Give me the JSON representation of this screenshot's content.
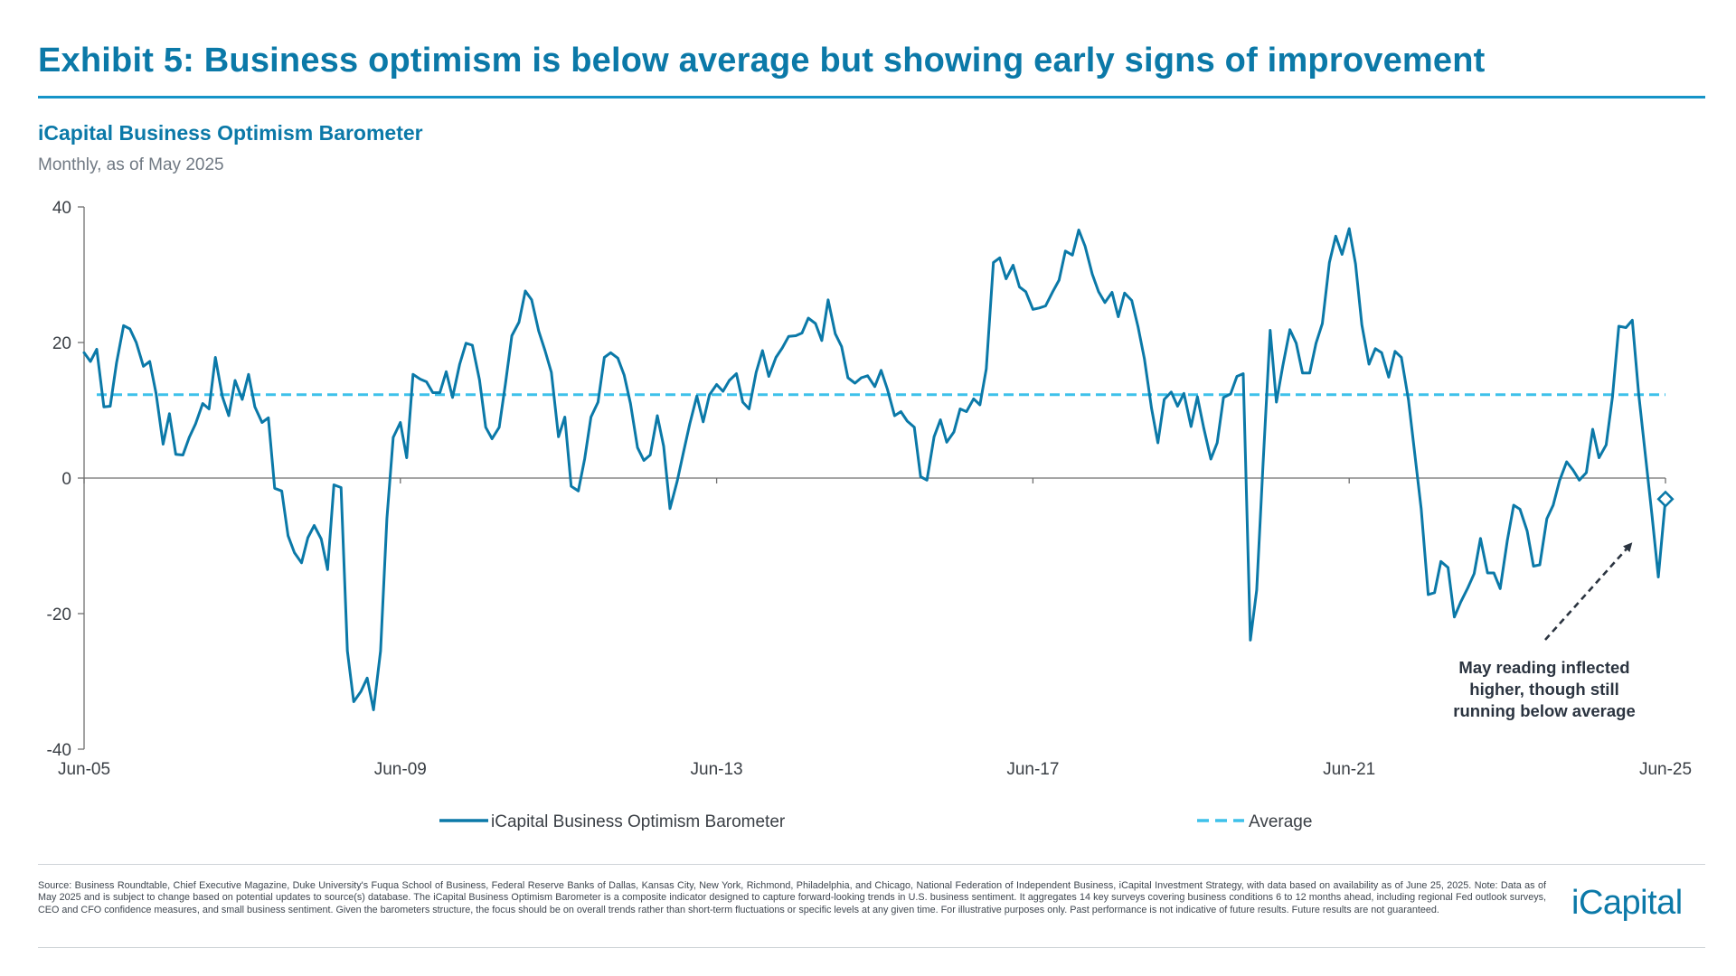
{
  "exhibit_title": "Exhibit 5: Business optimism is below average but showing early signs of improvement",
  "chart_subtitle": "iCapital Business Optimism Barometer",
  "chart_frequency": "Monthly, as of May 2025",
  "annotation": {
    "lines": [
      "May reading inflected",
      "higher, though still",
      "running below average"
    ]
  },
  "footer": {
    "source_note": "Source: Business Roundtable, Chief Executive Magazine, Duke University's Fuqua School of Business, Federal Reserve Banks of Dallas, Kansas City, New York, Richmond, Philadelphia, and Chicago, National Federation of Independent Business, iCapital Investment Strategy, with data based on availability as of June 25, 2025. Note: Data as of May 2025 and is subject to change based on potential updates to source(s) database. The iCapital Business Optimism Barometer is a composite indicator designed to capture forward-looking trends in U.S. business sentiment. It aggregates 14 key surveys covering business conditions 6 to 12 months ahead, including regional Fed outlook surveys, CEO and CFO confidence measures, and small business sentiment. Given the barometers structure, the focus should be on overall trends rather than short-term fluctuations or specific levels at any given time. For illustrative purposes only. Past performance is not indicative of future results. Future results are not guaranteed.",
    "logo_text": "iCapital"
  },
  "colors": {
    "title": "#0b79a8",
    "series_line": "#0b79a8",
    "average_line": "#3ec1ea",
    "axis": "#6f6f6f",
    "annotation_text": "#2b3440",
    "arrow": "#2b3440"
  },
  "chart_data": {
    "type": "line",
    "title": "iCapital Business Optimism Barometer",
    "subtitle": "Monthly, as of May 2025",
    "xlabel": "",
    "ylabel": "",
    "x_start": "Jun-05",
    "x_end": "Jun-25",
    "ylim": [
      -40,
      40
    ],
    "y_ticks": [
      40,
      20,
      0,
      -20,
      -40
    ],
    "x_ticks": [
      {
        "label": "Jun-05",
        "year": 2005.42
      },
      {
        "label": "Jun-09",
        "year": 2009.42
      },
      {
        "label": "Jun-13",
        "year": 2013.42
      },
      {
        "label": "Jun-17",
        "year": 2017.42
      },
      {
        "label": "Jun-21",
        "year": 2021.42
      },
      {
        "label": "Jun-25",
        "year": 2025.42
      }
    ],
    "grid": false,
    "legend_position": "bottom",
    "series": [
      {
        "name": "iCapital Business Optimism Barometer",
        "style": "solid",
        "points": [
          [
            2005.42,
            18.5
          ],
          [
            2005.5,
            17.2
          ],
          [
            2005.58,
            19.0
          ],
          [
            2005.67,
            10.5
          ],
          [
            2005.75,
            10.6
          ],
          [
            2005.83,
            17.0
          ],
          [
            2005.92,
            22.5
          ],
          [
            2006.0,
            22.0
          ],
          [
            2006.08,
            20.0
          ],
          [
            2006.17,
            16.5
          ],
          [
            2006.25,
            17.2
          ],
          [
            2006.33,
            12.5
          ],
          [
            2006.42,
            5.0
          ],
          [
            2006.5,
            9.5
          ],
          [
            2006.58,
            3.5
          ],
          [
            2006.67,
            3.4
          ],
          [
            2006.75,
            6.0
          ],
          [
            2006.83,
            8.0
          ],
          [
            2006.92,
            11.0
          ],
          [
            2007.0,
            10.2
          ],
          [
            2007.08,
            17.8
          ],
          [
            2007.17,
            12.0
          ],
          [
            2007.25,
            9.2
          ],
          [
            2007.33,
            14.4
          ],
          [
            2007.42,
            11.6
          ],
          [
            2007.5,
            15.3
          ],
          [
            2007.58,
            10.5
          ],
          [
            2007.67,
            8.2
          ],
          [
            2007.75,
            8.9
          ],
          [
            2007.83,
            -1.5
          ],
          [
            2007.92,
            -1.9
          ],
          [
            2008.0,
            -8.5
          ],
          [
            2008.08,
            -11.0
          ],
          [
            2008.17,
            -12.5
          ],
          [
            2008.25,
            -8.8
          ],
          [
            2008.33,
            -7.0
          ],
          [
            2008.42,
            -9.0
          ],
          [
            2008.5,
            -13.5
          ],
          [
            2008.58,
            -1.0
          ],
          [
            2008.67,
            -1.4
          ],
          [
            2008.75,
            -25.5
          ],
          [
            2008.83,
            -33.0
          ],
          [
            2008.92,
            -31.5
          ],
          [
            2009.0,
            -29.5
          ],
          [
            2009.08,
            -34.2
          ],
          [
            2009.17,
            -25.5
          ],
          [
            2009.25,
            -6.0
          ],
          [
            2009.33,
            6.0
          ],
          [
            2009.42,
            8.2
          ],
          [
            2009.5,
            3.0
          ],
          [
            2009.58,
            15.3
          ],
          [
            2009.67,
            14.6
          ],
          [
            2009.75,
            14.2
          ],
          [
            2009.83,
            12.6
          ],
          [
            2009.92,
            12.6
          ],
          [
            2010.0,
            15.7
          ],
          [
            2010.08,
            11.9
          ],
          [
            2010.17,
            16.8
          ],
          [
            2010.25,
            19.9
          ],
          [
            2010.33,
            19.6
          ],
          [
            2010.42,
            14.5
          ],
          [
            2010.5,
            7.5
          ],
          [
            2010.58,
            5.8
          ],
          [
            2010.67,
            7.5
          ],
          [
            2010.75,
            14.0
          ],
          [
            2010.83,
            21.0
          ],
          [
            2010.92,
            23.0
          ],
          [
            2011.0,
            27.6
          ],
          [
            2011.08,
            26.3
          ],
          [
            2011.17,
            21.7
          ],
          [
            2011.25,
            18.8
          ],
          [
            2011.33,
            15.6
          ],
          [
            2011.42,
            6.1
          ],
          [
            2011.5,
            9.0
          ],
          [
            2011.58,
            -1.2
          ],
          [
            2011.67,
            -1.9
          ],
          [
            2011.75,
            2.8
          ],
          [
            2011.83,
            9.0
          ],
          [
            2011.92,
            11.2
          ],
          [
            2012.0,
            17.8
          ],
          [
            2012.08,
            18.5
          ],
          [
            2012.17,
            17.7
          ],
          [
            2012.25,
            15.2
          ],
          [
            2012.33,
            11.0
          ],
          [
            2012.42,
            4.5
          ],
          [
            2012.5,
            2.6
          ],
          [
            2012.58,
            3.4
          ],
          [
            2012.67,
            9.2
          ],
          [
            2012.75,
            4.7
          ],
          [
            2012.83,
            -4.5
          ],
          [
            2012.92,
            -0.5
          ],
          [
            2013.0,
            3.8
          ],
          [
            2013.08,
            8.0
          ],
          [
            2013.17,
            12.1
          ],
          [
            2013.25,
            8.3
          ],
          [
            2013.33,
            12.3
          ],
          [
            2013.42,
            13.8
          ],
          [
            2013.5,
            12.8
          ],
          [
            2013.58,
            14.4
          ],
          [
            2013.67,
            15.4
          ],
          [
            2013.75,
            11.2
          ],
          [
            2013.83,
            10.2
          ],
          [
            2013.92,
            15.6
          ],
          [
            2014.0,
            18.8
          ],
          [
            2014.08,
            15.0
          ],
          [
            2014.17,
            17.8
          ],
          [
            2014.25,
            19.2
          ],
          [
            2014.33,
            20.9
          ],
          [
            2014.42,
            21.0
          ],
          [
            2014.5,
            21.4
          ],
          [
            2014.58,
            23.6
          ],
          [
            2014.67,
            22.8
          ],
          [
            2014.75,
            20.3
          ],
          [
            2014.83,
            26.3
          ],
          [
            2014.92,
            21.3
          ],
          [
            2015.0,
            19.4
          ],
          [
            2015.08,
            14.8
          ],
          [
            2015.17,
            14.0
          ],
          [
            2015.25,
            14.8
          ],
          [
            2015.33,
            15.1
          ],
          [
            2015.42,
            13.5
          ],
          [
            2015.5,
            15.9
          ],
          [
            2015.58,
            13.1
          ],
          [
            2015.67,
            9.2
          ],
          [
            2015.75,
            9.8
          ],
          [
            2015.83,
            8.4
          ],
          [
            2015.92,
            7.5
          ],
          [
            2016.0,
            0.2
          ],
          [
            2016.08,
            -0.3
          ],
          [
            2016.17,
            6.1
          ],
          [
            2016.25,
            8.6
          ],
          [
            2016.33,
            5.3
          ],
          [
            2016.42,
            6.8
          ],
          [
            2016.5,
            10.2
          ],
          [
            2016.58,
            9.8
          ],
          [
            2016.67,
            11.7
          ],
          [
            2016.75,
            10.8
          ],
          [
            2016.83,
            16.1
          ],
          [
            2016.92,
            31.8
          ],
          [
            2017.0,
            32.5
          ],
          [
            2017.08,
            29.4
          ],
          [
            2017.17,
            31.4
          ],
          [
            2017.25,
            28.2
          ],
          [
            2017.33,
            27.5
          ],
          [
            2017.42,
            24.9
          ],
          [
            2017.5,
            25.1
          ],
          [
            2017.58,
            25.4
          ],
          [
            2017.67,
            27.5
          ],
          [
            2017.75,
            29.2
          ],
          [
            2017.83,
            33.5
          ],
          [
            2017.92,
            32.9
          ],
          [
            2018.0,
            36.6
          ],
          [
            2018.08,
            34.2
          ],
          [
            2018.17,
            30.1
          ],
          [
            2018.25,
            27.5
          ],
          [
            2018.33,
            25.9
          ],
          [
            2018.42,
            27.4
          ],
          [
            2018.5,
            23.8
          ],
          [
            2018.58,
            27.3
          ],
          [
            2018.67,
            26.2
          ],
          [
            2018.75,
            22.3
          ],
          [
            2018.83,
            17.6
          ],
          [
            2018.92,
            10.3
          ],
          [
            2019.0,
            5.2
          ],
          [
            2019.08,
            11.6
          ],
          [
            2019.17,
            12.7
          ],
          [
            2019.25,
            10.6
          ],
          [
            2019.33,
            12.5
          ],
          [
            2019.42,
            7.6
          ],
          [
            2019.5,
            12.0
          ],
          [
            2019.58,
            7.4
          ],
          [
            2019.67,
            2.8
          ],
          [
            2019.75,
            5.2
          ],
          [
            2019.83,
            11.9
          ],
          [
            2019.92,
            12.4
          ],
          [
            2020.0,
            15.0
          ],
          [
            2020.08,
            15.4
          ],
          [
            2020.17,
            -23.9
          ],
          [
            2020.25,
            -16.5
          ],
          [
            2020.33,
            2.0
          ],
          [
            2020.42,
            21.8
          ],
          [
            2020.5,
            11.2
          ],
          [
            2020.58,
            16.5
          ],
          [
            2020.67,
            21.9
          ],
          [
            2020.75,
            19.9
          ],
          [
            2020.83,
            15.5
          ],
          [
            2020.92,
            15.5
          ],
          [
            2021.0,
            19.9
          ],
          [
            2021.08,
            22.8
          ],
          [
            2021.17,
            31.8
          ],
          [
            2021.25,
            35.7
          ],
          [
            2021.33,
            33.0
          ],
          [
            2021.42,
            36.8
          ],
          [
            2021.5,
            31.6
          ],
          [
            2021.58,
            22.6
          ],
          [
            2021.67,
            16.8
          ],
          [
            2021.75,
            19.1
          ],
          [
            2021.83,
            18.5
          ],
          [
            2021.92,
            14.9
          ],
          [
            2022.0,
            18.7
          ],
          [
            2022.08,
            17.8
          ],
          [
            2022.17,
            11.5
          ],
          [
            2022.25,
            3.5
          ],
          [
            2022.33,
            -4.5
          ],
          [
            2022.42,
            -17.2
          ],
          [
            2022.5,
            -16.9
          ],
          [
            2022.58,
            -12.3
          ],
          [
            2022.67,
            -13.2
          ],
          [
            2022.75,
            -20.5
          ],
          [
            2022.83,
            -18.3
          ],
          [
            2022.92,
            -16.2
          ],
          [
            2023.0,
            -14.1
          ],
          [
            2023.08,
            -8.9
          ],
          [
            2023.17,
            -14.0
          ],
          [
            2023.25,
            -14.0
          ],
          [
            2023.33,
            -16.3
          ],
          [
            2023.42,
            -9.2
          ],
          [
            2023.5,
            -4.0
          ],
          [
            2023.58,
            -4.6
          ],
          [
            2023.67,
            -7.8
          ],
          [
            2023.75,
            -13.0
          ],
          [
            2023.83,
            -12.8
          ],
          [
            2023.92,
            -6.0
          ],
          [
            2024.0,
            -4.0
          ],
          [
            2024.08,
            -0.4
          ],
          [
            2024.17,
            2.4
          ],
          [
            2024.25,
            1.2
          ],
          [
            2024.33,
            -0.3
          ],
          [
            2024.42,
            0.8
          ],
          [
            2024.5,
            7.2
          ],
          [
            2024.58,
            3.0
          ],
          [
            2024.67,
            4.9
          ],
          [
            2024.75,
            12.0
          ],
          [
            2024.83,
            22.4
          ],
          [
            2024.92,
            22.2
          ],
          [
            2025.0,
            23.3
          ],
          [
            2025.08,
            12.5
          ],
          [
            2025.17,
            3.0
          ],
          [
            2025.25,
            -5.5
          ],
          [
            2025.33,
            -14.6
          ],
          [
            2025.42,
            -3.1
          ]
        ]
      },
      {
        "name": "Average",
        "style": "dashed",
        "value": 12.3
      }
    ],
    "last_point": [
      2025.42,
      -3.1
    ]
  }
}
